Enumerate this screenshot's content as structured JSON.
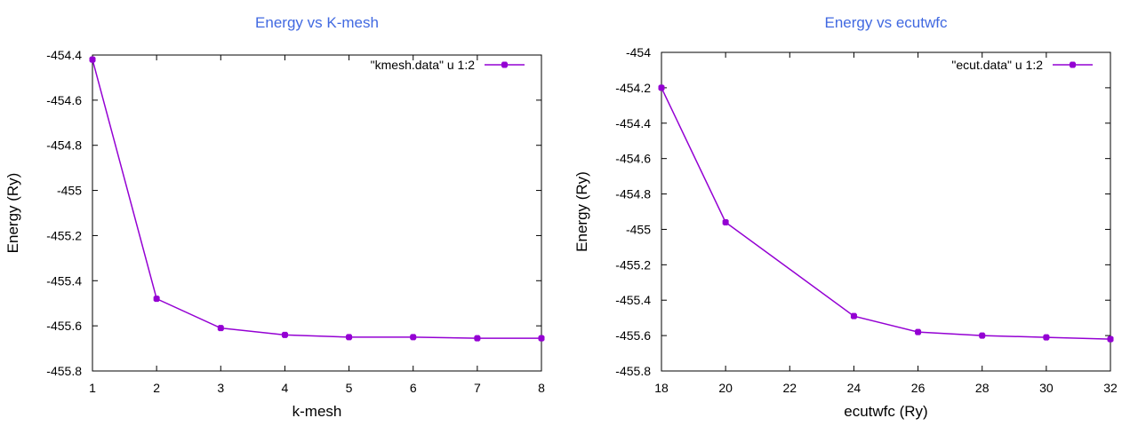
{
  "chart_data": [
    {
      "type": "line",
      "title": "Energy vs K-mesh",
      "xlabel": "k-mesh",
      "ylabel": "Energy (Ry)",
      "xlim": [
        1,
        8
      ],
      "ylim": [
        -455.8,
        -454.4
      ],
      "xticks": [
        "1",
        "2",
        "3",
        "4",
        "5",
        "6",
        "7",
        "8"
      ],
      "yticks": [
        "-454.4",
        "-454.6",
        "-454.8",
        "-455",
        "-455.2",
        "-455.4",
        "-455.6",
        "-455.8"
      ],
      "grid": false,
      "legend_position": "top-right",
      "color": "#9400d3",
      "series": [
        {
          "name": "\"kmesh.data\" u 1:2",
          "x": [
            1,
            2,
            3,
            4,
            5,
            6,
            7,
            8
          ],
          "y": [
            -454.42,
            -455.48,
            -455.61,
            -455.64,
            -455.65,
            -455.65,
            -455.655,
            -455.655
          ]
        }
      ]
    },
    {
      "type": "line",
      "title": "Energy vs ecutwfc",
      "xlabel": "ecutwfc (Ry)",
      "ylabel": "Energy (Ry)",
      "xlim": [
        18,
        32
      ],
      "ylim": [
        -455.8,
        -454
      ],
      "xticks": [
        "18",
        "20",
        "22",
        "24",
        "26",
        "28",
        "30",
        "32"
      ],
      "yticks": [
        "-454",
        "-454.2",
        "-454.4",
        "-454.6",
        "-454.8",
        "-455",
        "-455.2",
        "-455.4",
        "-455.6",
        "-455.8"
      ],
      "grid": false,
      "legend_position": "top-right",
      "color": "#9400d3",
      "series": [
        {
          "name": "\"ecut.data\" u 1:2",
          "x": [
            18,
            20,
            24,
            26,
            28,
            30,
            32
          ],
          "y": [
            -454.2,
            -454.96,
            -455.49,
            -455.58,
            -455.6,
            -455.61,
            -455.62
          ]
        }
      ]
    }
  ]
}
